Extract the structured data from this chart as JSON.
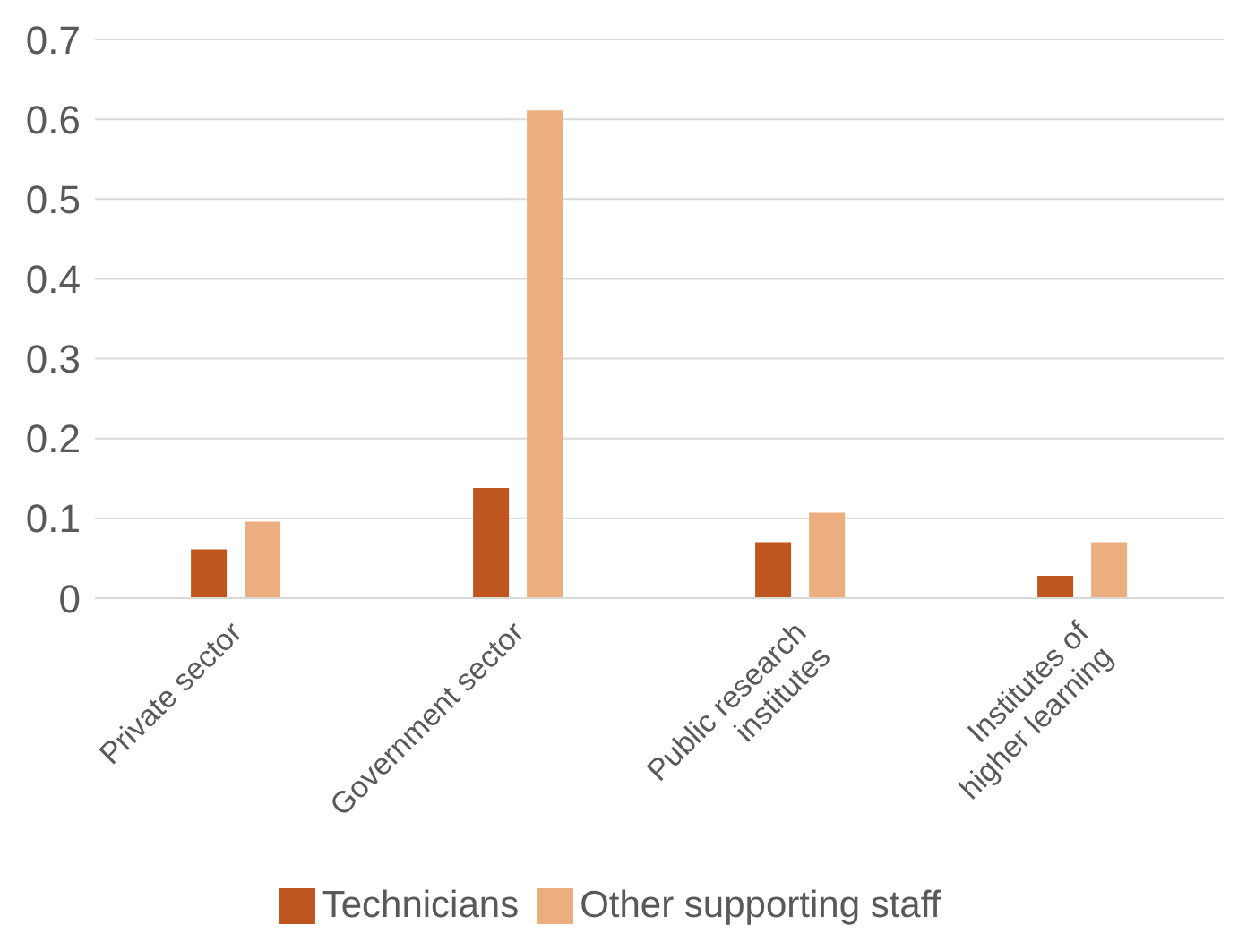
{
  "chart_data": {
    "type": "bar",
    "categories": [
      "Private sector",
      "Government sector",
      "Public research institutes",
      "Institutes of higher learning"
    ],
    "series": [
      {
        "name": "Technicians",
        "color": "#c0561f",
        "values": [
          0.061,
          0.138,
          0.07,
          0.028
        ]
      },
      {
        "name": "Other supporting staff",
        "color": "#edae7f",
        "values": [
          0.096,
          0.611,
          0.107,
          0.07
        ]
      }
    ],
    "ylim": [
      0,
      0.7
    ],
    "yticks": [
      0,
      0.1,
      0.2,
      0.3,
      0.4,
      0.5,
      0.6,
      0.7
    ],
    "grid": "y",
    "legend": "bottom"
  }
}
